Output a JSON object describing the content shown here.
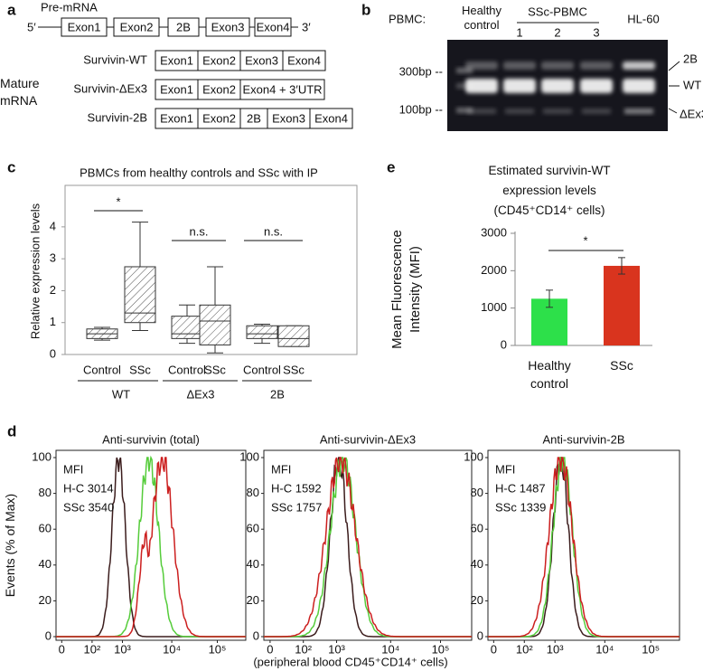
{
  "panel_labels": {
    "a": "a",
    "b": "b",
    "c": "c",
    "d": "d",
    "e": "e"
  },
  "panel_a": {
    "pre_mrna_title": "Pre-mRNA",
    "five_prime": "5′",
    "three_prime": "3′",
    "pre_mrna_exons": [
      "Exon1",
      "Exon2",
      "2B",
      "Exon3",
      "Exon4"
    ],
    "mature_title": "Mature mRNA",
    "transcripts": [
      {
        "name": "Survivin-WT",
        "exons": [
          "Exon1",
          "Exon2",
          "Exon3",
          "Exon4"
        ]
      },
      {
        "name": "Survivin-ΔEx3",
        "exons": [
          "Exon1",
          "Exon2",
          "Exon4 + 3′UTR"
        ]
      },
      {
        "name": "Survivin-2B",
        "exons": [
          "Exon1",
          "Exon2",
          "2B",
          "Exon3",
          "Exon4"
        ]
      }
    ]
  },
  "panel_b": {
    "row_label": "PBMC:",
    "healthy": "Healthy control",
    "ssc_group": "SSc-PBMC",
    "ssc_lanes": [
      "1",
      "2",
      "3"
    ],
    "hl60": "HL-60",
    "markers": [
      "300bp --",
      "100bp --"
    ],
    "bands": [
      "2B",
      "WT",
      "ΔEx3"
    ]
  },
  "chart_data": [
    {
      "type": "box",
      "title": "PBMCs from healthy controls and SSc with IP",
      "ylabel": "Relative expression levels",
      "categories": [
        "Control",
        "SSc",
        "Control",
        "SSc",
        "Control",
        "SSc"
      ],
      "groups": [
        "WT",
        "ΔEx3",
        "2B"
      ],
      "boxes": [
        {
          "min": 0.45,
          "q1": 0.5,
          "median": 0.65,
          "q3": 0.8,
          "max": 0.85
        },
        {
          "min": 0.75,
          "q1": 1.0,
          "median": 1.3,
          "q3": 2.75,
          "max": 4.15
        },
        {
          "min": 0.35,
          "q1": 0.5,
          "median": 0.65,
          "q3": 1.2,
          "max": 1.55
        },
        {
          "min": 0.05,
          "q1": 0.3,
          "median": 1.05,
          "q3": 1.55,
          "max": 2.75
        },
        {
          "min": 0.35,
          "q1": 0.5,
          "median": 0.65,
          "q3": 0.9,
          "max": 0.95
        },
        {
          "min": 0.25,
          "q1": 0.25,
          "median": 0.5,
          "q3": 0.9,
          "max": 0.9
        }
      ],
      "ylim": [
        0,
        5.3
      ],
      "yticks": [
        0,
        1,
        2,
        3,
        4
      ],
      "annotations": [
        "*",
        "n.s.",
        "n.s."
      ]
    },
    {
      "type": "bar",
      "title": "Estimated survivin-WT expression levels (CD45⁺CD14⁺ cells)",
      "ylabel": "Mean Fluorescence Intensity (MFI)",
      "categories": [
        "Healthy control",
        "SSc"
      ],
      "values": [
        1250,
        2130
      ],
      "errors": [
        230,
        220
      ],
      "colors": [
        "#2de04a",
        "#d9341e"
      ],
      "ylim": [
        0,
        3000
      ],
      "yticks": [
        0,
        1000,
        2000,
        3000
      ],
      "annotations": [
        "*"
      ]
    }
  ],
  "panel_d": {
    "plots": [
      {
        "title": "Anti-survivin (total)",
        "mfi": [
          "MFI",
          "H-C 3014",
          "SSc 3540"
        ]
      },
      {
        "title": "Anti-survivin-ΔEx3",
        "mfi": [
          "MFI",
          "H-C 1592",
          "SSc 1757"
        ]
      },
      {
        "title": "Anti-survivin-2B",
        "mfi": [
          "MFI",
          "H-C 1487",
          "SSc 1339"
        ]
      }
    ],
    "ylabel": "Events (% of Max)",
    "yticks": [
      0,
      20,
      40,
      60,
      80,
      100
    ],
    "xticks": [
      "0",
      "10²",
      "10³",
      "10⁴",
      "10⁵"
    ],
    "xlabel": "(peripheral blood CD45⁺CD14⁺ cells)"
  }
}
